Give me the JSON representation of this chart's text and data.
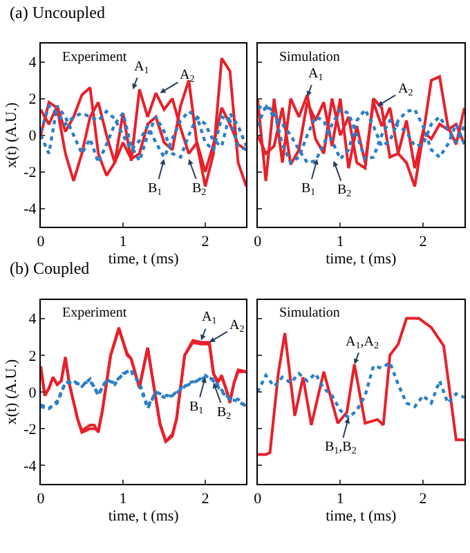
{
  "chart_data": [
    {
      "type": "line",
      "title": "(a) Uncoupled",
      "subtitle": "Experiment",
      "xlabel": "time, t (ms)",
      "ylabel": "x(t) (A.U.)",
      "xlim": [
        0,
        2.5
      ],
      "xticks": [
        0,
        1,
        2
      ],
      "ylim": [
        -5,
        5
      ],
      "yticks": [
        -4,
        -2,
        0,
        2,
        4
      ],
      "x": [
        0,
        0.1,
        0.2,
        0.3,
        0.4,
        0.5,
        0.6,
        0.7,
        0.8,
        0.9,
        1.0,
        1.1,
        1.2,
        1.3,
        1.4,
        1.5,
        1.6,
        1.7,
        1.8,
        1.9,
        2.0,
        2.1,
        2.2,
        2.3,
        2.4,
        2.5
      ],
      "series": [
        {
          "color": "#e8202a",
          "line_style": "solid",
          "values": [
            1.4,
            0.6,
            1.6,
            0.2,
            1.0,
            2.2,
            2.6,
            -1.0,
            -2.2,
            -1.5,
            -0.4,
            -1.3,
            -1.0,
            0.6,
            1.0,
            -0.4,
            -0.8,
            1.6,
            3.0,
            -0.5,
            -2.8,
            -1.0,
            4.2,
            3.5,
            -1.5,
            -2.8
          ]
        },
        {
          "color": "#e8202a",
          "line_style": "solid",
          "values": [
            0.0,
            1.8,
            1.5,
            -1.0,
            -2.5,
            -1.0,
            1.0,
            1.8,
            0.0,
            -1.5,
            1.2,
            -1.4,
            2.5,
            1.0,
            2.3,
            1.4,
            2.0,
            0.4,
            -1.0,
            -0.4,
            -2.0,
            -0.5,
            1.5,
            0.6,
            -0.5,
            -0.8
          ]
        },
        {
          "color": "#2a7fc9",
          "line_style": "dotted",
          "values": [
            0,
            -1.0,
            1.6,
            1.0,
            0.0,
            -1.0,
            -0.2,
            -1.5,
            -0.5,
            0.6,
            1.2,
            -0.6,
            -1.4,
            0.0,
            1.0,
            0.2,
            -1.0,
            -1.2,
            0.0,
            1.0,
            -0.4,
            -0.8,
            1.0,
            0.8,
            -0.6,
            -0.8
          ]
        },
        {
          "color": "#2a7fc9",
          "line_style": "dotted",
          "values": [
            0.2,
            1.6,
            1.2,
            0.6,
            1.0,
            1.2,
            1.0,
            0.8,
            1.3,
            0.9,
            0.0,
            -0.8,
            -0.3,
            0.5,
            -0.4,
            -1.2,
            -0.2,
            0.8,
            1.3,
            1.0,
            0.6,
            -0.3,
            -0.6,
            1.2,
            0.5,
            -0.6
          ]
        }
      ],
      "annotations": [
        {
          "text": "A$_{1}$",
          "x": 1.12,
          "y": 2.5
        },
        {
          "text": "A$_{2}$",
          "x": 1.45,
          "y": 2.3
        },
        {
          "text": "B$_{1}$",
          "x": 1.5,
          "y": -1.3
        },
        {
          "text": "B$_{2}$",
          "x": 1.8,
          "y": -1.3
        }
      ]
    },
    {
      "type": "line",
      "subtitle": "Simulation",
      "xlabel": "time, t (ms)",
      "xlim": [
        0,
        2.5
      ],
      "xticks": [
        0,
        1,
        2
      ],
      "ylim": [
        -5,
        5
      ],
      "yticks": [
        -4,
        -2,
        0,
        2,
        4
      ],
      "tick_labels": "x",
      "x": [
        0,
        0.1,
        0.2,
        0.3,
        0.4,
        0.5,
        0.6,
        0.7,
        0.8,
        0.9,
        1.0,
        1.1,
        1.2,
        1.3,
        1.4,
        1.5,
        1.6,
        1.7,
        1.8,
        1.9,
        2.0,
        2.1,
        2.2,
        2.3,
        2.4,
        2.5
      ],
      "series": [
        {
          "color": "#e8202a",
          "line_style": "solid",
          "values": [
            2.0,
            -2.5,
            2.0,
            -1.5,
            2.0,
            1.0,
            2.2,
            -0.2,
            -1.0,
            2.0,
            0.0,
            1.0,
            -1.5,
            -1.8,
            2.0,
            1.5,
            -1.2,
            -1.0,
            -1.5,
            -2.8,
            0.0,
            3.0,
            3.2,
            0.5,
            -0.5,
            1.5
          ]
        },
        {
          "color": "#e8202a",
          "line_style": "solid",
          "values": [
            0.0,
            -1.0,
            -0.6,
            1.5,
            -1.6,
            -0.8,
            1.8,
            0.8,
            1.8,
            -0.6,
            2.0,
            -1.8,
            0.5,
            -1.5,
            1.8,
            0.5,
            1.5,
            -1.0,
            0.8,
            -1.8,
            0.2,
            -0.2,
            0.6,
            0.3,
            0.6,
            -0.5
          ]
        },
        {
          "color": "#2a7fc9",
          "line_style": "dotted",
          "values": [
            1.5,
            1.6,
            1.0,
            0.6,
            0.0,
            -0.8,
            -1.5,
            -1.4,
            -0.5,
            0.6,
            1.4,
            1.2,
            0.0,
            -1.3,
            -1.2,
            0.0,
            0.8,
            0.5,
            0.2,
            -0.6,
            -0.5,
            0.6,
            1.0,
            0.3,
            -0.4,
            0.5
          ]
        },
        {
          "color": "#2a7fc9",
          "line_style": "dotted",
          "values": [
            0.5,
            1.6,
            1.3,
            -0.5,
            -1.5,
            -1.2,
            0.0,
            1.0,
            0.8,
            -0.3,
            -1.3,
            -0.8,
            0.8,
            1.4,
            0.5,
            -0.6,
            -0.3,
            0.8,
            1.3,
            1.4,
            0.5,
            -0.8,
            -1.2,
            -0.5,
            0.6,
            -0.5
          ]
        }
      ],
      "annotations": [
        {
          "text": "A$_{1}$",
          "x": 0.6,
          "y": 2.1
        },
        {
          "text": "A$_{2}$",
          "x": 1.45,
          "y": 1.6
        },
        {
          "text": "B$_{1}$",
          "x": 0.72,
          "y": -1.3
        },
        {
          "text": "B$_{2}$",
          "x": 0.92,
          "y": -1.4
        }
      ]
    },
    {
      "type": "line",
      "title": "(b) Coupled",
      "subtitle": "Experiment",
      "xlabel": "time, t (ms)",
      "ylabel": "x(t) (A.U.)",
      "xlim": [
        0,
        2.5
      ],
      "xticks": [
        0,
        1,
        2
      ],
      "ylim": [
        -5,
        5
      ],
      "yticks": [
        -4,
        -2,
        0,
        2,
        4
      ],
      "x": [
        0,
        0.1,
        0.2,
        0.3,
        0.4,
        0.5,
        0.6,
        0.7,
        0.8,
        0.9,
        1.0,
        1.1,
        1.2,
        1.3,
        1.4,
        1.5,
        1.6,
        1.7,
        1.8,
        1.9,
        2.0,
        2.1,
        2.2,
        2.3,
        2.4,
        2.5
      ],
      "series": [
        {
          "color": "#e8202a",
          "line_style": "solid",
          "x": [
            0,
            0.05,
            0.1,
            0.15,
            0.2,
            0.25,
            0.3,
            0.35,
            0.45,
            0.5,
            0.6,
            0.65,
            0.7,
            0.75,
            0.85,
            0.95,
            1.05,
            1.1,
            1.15,
            1.2,
            1.3,
            1.35,
            1.45,
            1.52,
            1.6,
            1.65,
            1.75,
            1.85,
            1.95,
            2.05,
            2.1,
            2.15,
            2.2,
            2.25,
            2.3,
            2.35,
            2.4,
            2.5
          ],
          "values": [
            1.4,
            -0.2,
            0.2,
            0.8,
            0.4,
            0.6,
            1.9,
            0.4,
            -1.5,
            -2.2,
            -2.0,
            -2.0,
            -2.1,
            -1.0,
            2.0,
            3.5,
            2.0,
            1.8,
            1.0,
            0.2,
            2.4,
            1.0,
            -1.8,
            -2.7,
            -2.4,
            -1.5,
            2.0,
            2.8,
            2.7,
            2.7,
            1.0,
            0.5,
            0.9,
            0.2,
            -0.6,
            0.5,
            1.2,
            1.1
          ]
        },
        {
          "color": "#e8202a",
          "line_style": "solid",
          "x": [
            0,
            0.05,
            0.1,
            0.15,
            0.2,
            0.25,
            0.3,
            0.35,
            0.45,
            0.5,
            0.6,
            0.65,
            0.7,
            0.75,
            0.85,
            0.95,
            1.05,
            1.1,
            1.15,
            1.2,
            1.3,
            1.35,
            1.45,
            1.52,
            1.6,
            1.65,
            1.75,
            1.85,
            1.95,
            2.05,
            2.1,
            2.15,
            2.2,
            2.25,
            2.3,
            2.35,
            2.4,
            2.5
          ],
          "values": [
            1.3,
            -0.2,
            0.2,
            0.8,
            0.4,
            0.6,
            1.8,
            0.4,
            -1.5,
            -2.1,
            -1.8,
            -1.8,
            -2.2,
            -1.0,
            2.0,
            3.4,
            2.1,
            1.8,
            1.0,
            0.3,
            2.4,
            1.0,
            -1.7,
            -2.7,
            -2.3,
            -1.5,
            2.0,
            2.7,
            2.6,
            2.6,
            1.0,
            0.6,
            0.8,
            0.2,
            -0.5,
            0.5,
            1.1,
            1.1
          ]
        },
        {
          "color": "#2a7fc9",
          "line_style": "dotted",
          "values": [
            -0.7,
            -0.9,
            -0.6,
            0.5,
            0.6,
            0.3,
            0.7,
            -0.2,
            0.7,
            0.4,
            1.0,
            1.2,
            0.4,
            -0.9,
            0.0,
            -0.3,
            -0.2,
            0.1,
            0.5,
            0.6,
            0.9,
            0.6,
            0.0,
            -0.4,
            -0.4,
            -0.8
          ]
        },
        {
          "color": "#2a7fc9",
          "line_style": "dotted",
          "values": [
            -0.8,
            -0.9,
            -0.5,
            0.5,
            0.5,
            0.4,
            0.6,
            -0.1,
            0.6,
            0.5,
            1.0,
            1.1,
            0.5,
            -0.8,
            0.0,
            -0.2,
            -0.2,
            0.2,
            0.4,
            0.6,
            0.8,
            0.7,
            0.1,
            -0.4,
            -0.5,
            -0.8
          ]
        }
      ],
      "annotations": [
        {
          "text": "A$_{1}$",
          "x": 1.95,
          "y": 2.8
        },
        {
          "text": "A$_{2}$",
          "x": 2.05,
          "y": 2.7
        },
        {
          "text": "B$_{1}$",
          "x": 2.0,
          "y": 0.8
        },
        {
          "text": "B$_{2}$",
          "x": 2.1,
          "y": 0.5
        }
      ]
    },
    {
      "type": "line",
      "subtitle": "Simulation",
      "xlabel": "time, t (ms)",
      "xlim": [
        0,
        2.5
      ],
      "xticks": [
        0,
        1,
        2
      ],
      "ylim": [
        -5,
        5
      ],
      "yticks": [
        -4,
        -2,
        0,
        2,
        4
      ],
      "tick_labels": "x",
      "x": [
        0,
        0.1,
        0.2,
        0.3,
        0.4,
        0.5,
        0.6,
        0.7,
        0.8,
        0.9,
        1.0,
        1.1,
        1.2,
        1.3,
        1.4,
        1.5,
        1.6,
        1.7,
        1.8,
        1.9,
        2.0,
        2.1,
        2.2,
        2.3,
        2.4,
        2.5
      ],
      "series": [
        {
          "color": "#e8202a",
          "line_style": "solid",
          "x": [
            0,
            0.1,
            0.15,
            0.25,
            0.33,
            0.45,
            0.55,
            0.65,
            0.8,
            0.97,
            1.08,
            1.17,
            1.3,
            1.45,
            1.52,
            1.6,
            1.7,
            1.8,
            1.95,
            2.1,
            2.25,
            2.4,
            2.5
          ],
          "values": [
            -3.4,
            -3.4,
            -3.3,
            1.0,
            3.2,
            -1.3,
            0.8,
            -1.8,
            1.1,
            -1.7,
            -1.1,
            1.5,
            -1.7,
            -1.5,
            -1.8,
            2.0,
            2.6,
            4.0,
            4.0,
            3.5,
            2.5,
            -2.6,
            -2.6
          ]
        },
        {
          "color": "#2a7fc9",
          "line_style": "dotted",
          "values": [
            0,
            0.9,
            0.3,
            0.8,
            0.5,
            1.0,
            0.6,
            1.0,
            0.2,
            -0.2,
            -1.0,
            -1.4,
            -1.0,
            -0.2,
            1.4,
            1.3,
            1.6,
            0.4,
            -0.6,
            -0.8,
            -0.2,
            -0.6,
            0.6,
            -0.6,
            -0.1,
            -0.3
          ]
        }
      ],
      "annotations": [
        {
          "text": "A$_{1}$,A$_{2}$",
          "x": 1.17,
          "y": 1.5
        },
        {
          "text": "B$_{1}$,B$_{2}$",
          "x": 1.1,
          "y": -1.4
        }
      ]
    }
  ]
}
